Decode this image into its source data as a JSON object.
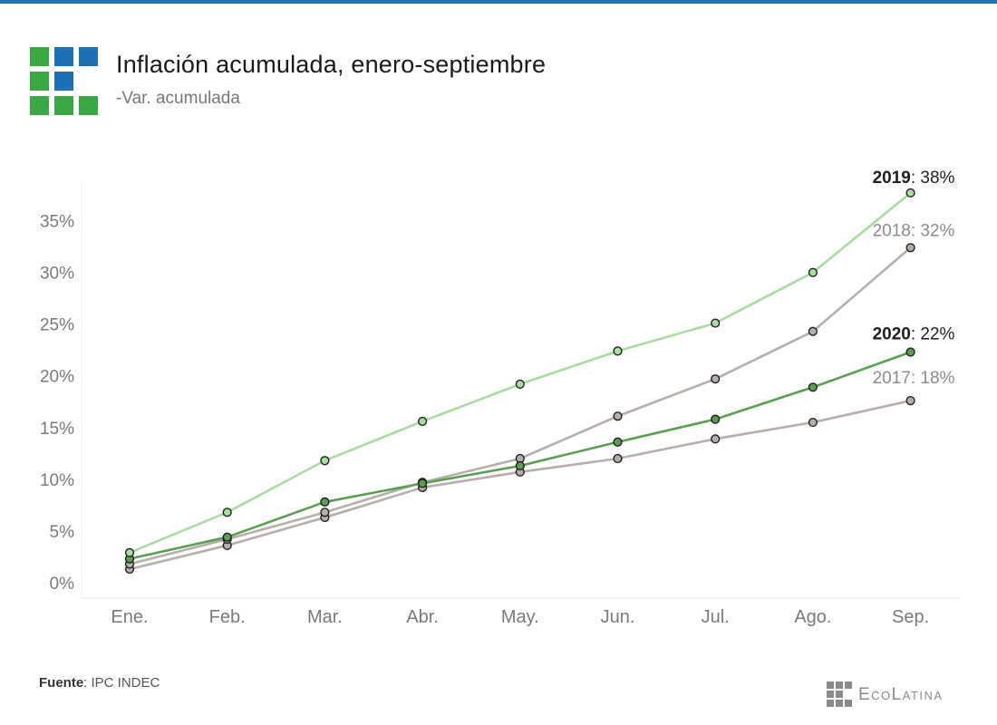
{
  "header": {
    "title": "Inflación acumulada, enero-septiembre",
    "subtitle": "-Var. acumulada"
  },
  "footer": {
    "source_label": "Fuente",
    "source_text": ": IPC INDEC",
    "brand": "EcoLatina"
  },
  "colors": {
    "top_bar": "#1f6fb5",
    "logo_green": "#3aa845",
    "logo_blue": "#1f6fb5",
    "series_2019": "#a8dca0",
    "series_2020": "#5a9e52",
    "series_2018": "#b6aeaa",
    "series_2017": "#b6aeaa",
    "grid": "#e6e6e6",
    "tick_text": "#7a7a7a"
  },
  "chart_data": {
    "type": "line",
    "title": "Inflación acumulada, enero-septiembre",
    "subtitle": "-Var. acumulada",
    "xlabel": "",
    "ylabel": "",
    "categories": [
      "Ene.",
      "Feb.",
      "Mar.",
      "Abr.",
      "May.",
      "Jun.",
      "Jul.",
      "Ago.",
      "Sep."
    ],
    "y_ticks": [
      0,
      5,
      10,
      15,
      20,
      25,
      30,
      35
    ],
    "y_tick_labels": [
      "0%",
      "5%",
      "10%",
      "15%",
      "20%",
      "25%",
      "30%",
      "35%"
    ],
    "ylim": [
      -1.5,
      39
    ],
    "grid": false,
    "series": [
      {
        "name": "2017",
        "label_year": "2017",
        "label_value": ": 18%",
        "values": [
          1.3,
          3.6,
          6.3,
          9.2,
          10.7,
          12.0,
          13.9,
          15.5,
          17.6
        ]
      },
      {
        "name": "2018",
        "label_year": "2018",
        "label_value": ": 32%",
        "values": [
          1.8,
          4.2,
          6.8,
          9.7,
          12.0,
          16.1,
          19.7,
          24.3,
          32.4
        ]
      },
      {
        "name": "2020",
        "label_year": "2020",
        "label_value": ": 22%",
        "values": [
          2.3,
          4.4,
          7.8,
          9.6,
          11.3,
          13.6,
          15.8,
          18.9,
          22.3
        ]
      },
      {
        "name": "2019",
        "label_year": "2019",
        "label_value": ": 38%",
        "values": [
          2.9,
          6.8,
          11.8,
          15.6,
          19.2,
          22.4,
          25.1,
          30.0,
          37.7
        ]
      }
    ]
  }
}
